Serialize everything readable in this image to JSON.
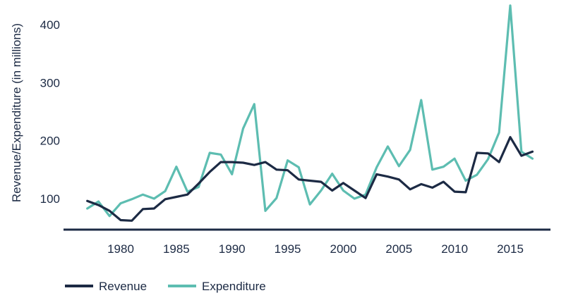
{
  "chart_data": {
    "type": "line",
    "title": "",
    "xlabel": "",
    "ylabel": "Revenue/Expenditure (in millions)",
    "xlim": [
      1975,
      2019
    ],
    "ylim": [
      50,
      435
    ],
    "x_ticks": [
      1980,
      1985,
      1990,
      1995,
      2000,
      2005,
      2010,
      2015
    ],
    "y_ticks": [
      100,
      200,
      300,
      400
    ],
    "legend_position": "bottom-left",
    "x": [
      1977,
      1978,
      1979,
      1980,
      1981,
      1982,
      1983,
      1984,
      1985,
      1986,
      1987,
      1988,
      1989,
      1990,
      1991,
      1992,
      1993,
      1994,
      1995,
      1996,
      1997,
      1998,
      1999,
      2000,
      2001,
      2002,
      2003,
      2004,
      2005,
      2006,
      2007,
      2008,
      2009,
      2010,
      2011,
      2012,
      2013,
      2014,
      2015,
      2016,
      2017
    ],
    "series": [
      {
        "name": "Revenue",
        "color": "#1c2a44",
        "values": [
          96,
          89,
          79,
          63,
          62,
          82,
          83,
          99,
          103,
          107,
          126,
          146,
          163,
          163,
          162,
          158,
          163,
          150,
          149,
          133,
          131,
          129,
          114,
          127,
          114,
          101,
          142,
          138,
          133,
          116,
          125,
          119,
          129,
          112,
          111,
          179,
          178,
          163,
          206,
          174,
          181
        ]
      },
      {
        "name": "Expenditure",
        "color": "#5dbdb1",
        "values": [
          83,
          95,
          70,
          92,
          99,
          107,
          100,
          113,
          155,
          112,
          120,
          179,
          176,
          142,
          221,
          263,
          79,
          101,
          166,
          154,
          90,
          114,
          143,
          114,
          100,
          107,
          154,
          190,
          156,
          184,
          270,
          150,
          155,
          169,
          131,
          141,
          168,
          214,
          433,
          181,
          169
        ]
      }
    ]
  }
}
